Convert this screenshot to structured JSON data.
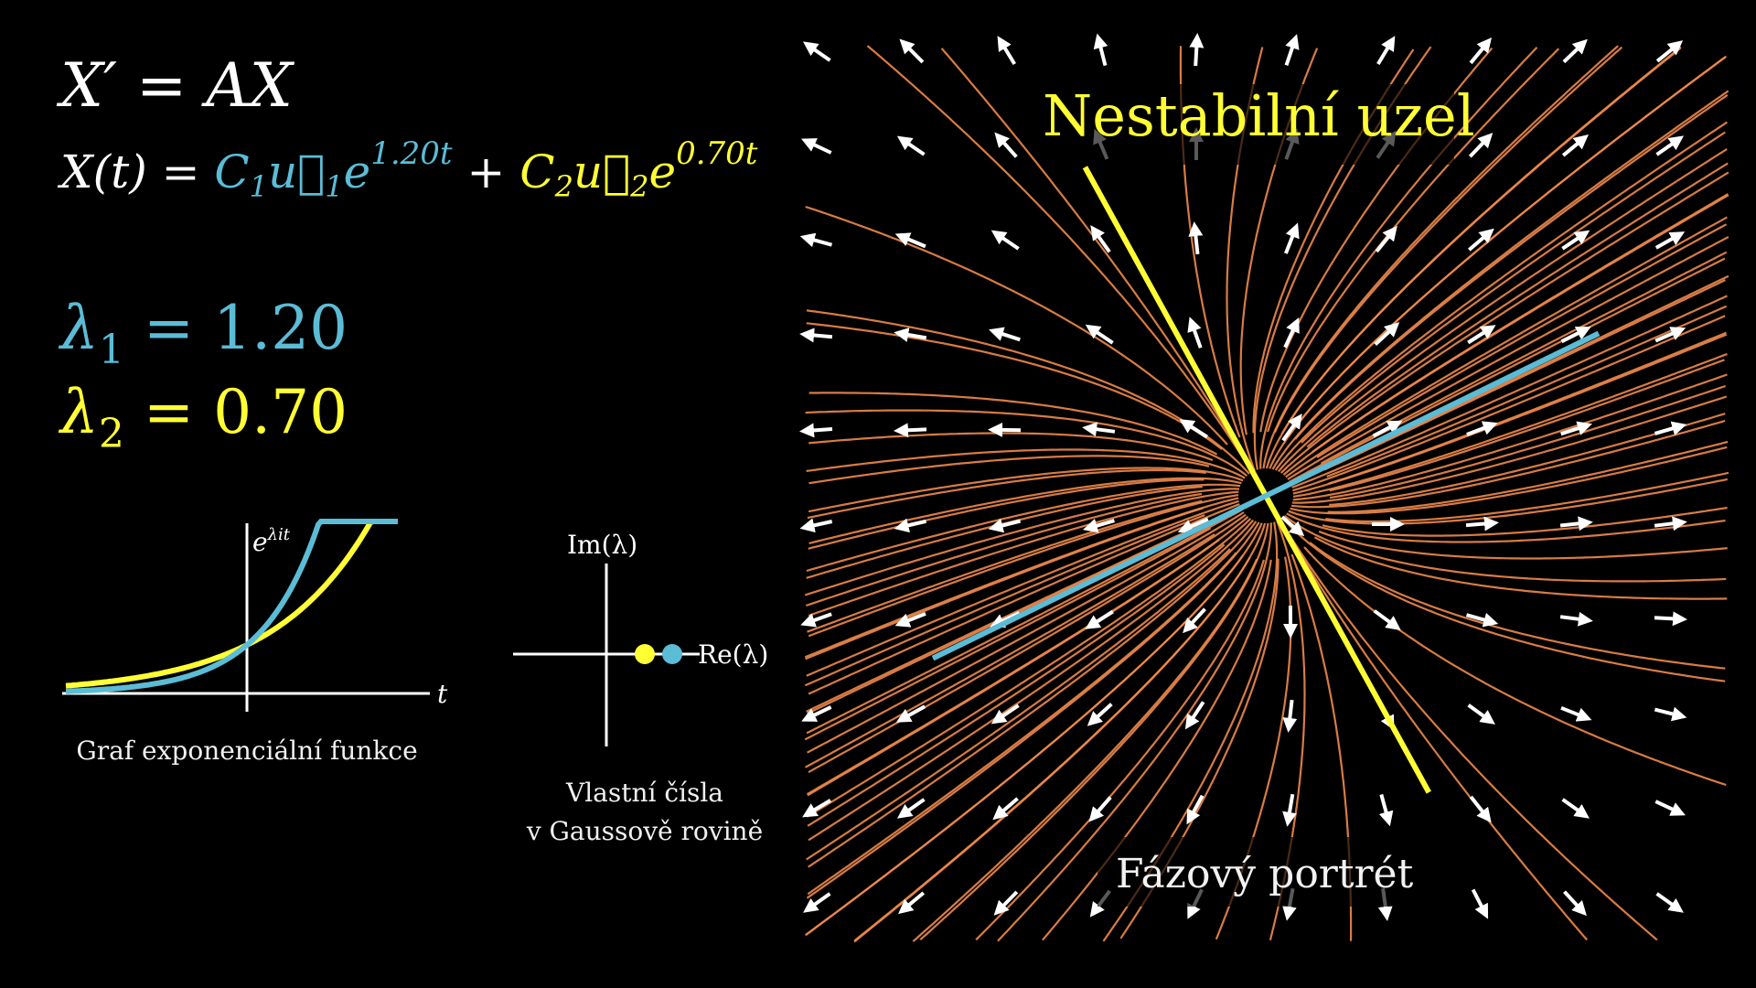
{
  "equations": {
    "system": "X′ = AX",
    "solution": {
      "lhs": "X(t) =",
      "term1": {
        "coef": "C",
        "coef_sub": "1",
        "vec": "u⃗",
        "vec_sub": "1",
        "base": "e",
        "exp": "1.20t"
      },
      "plus": "+",
      "term2": {
        "coef": "C",
        "coef_sub": "2",
        "vec": "u⃗",
        "vec_sub": "2",
        "base": "e",
        "exp": "0.70t"
      }
    }
  },
  "eigenvalues": [
    {
      "symbol": "λ",
      "sub": "1",
      "eq": "= 1.20",
      "value": 1.2,
      "color": "#5bbcd6"
    },
    {
      "symbol": "λ",
      "sub": "2",
      "eq": "= 0.70",
      "value": 0.7,
      "color": "#ffff33"
    }
  ],
  "exp_graph": {
    "caption": "Graf exponenciální funkce",
    "y_label_base": "e",
    "y_label_exp": "λit",
    "x_label": "t",
    "curves": [
      {
        "rate": 1.2,
        "color": "#5bbcd6"
      },
      {
        "rate": 0.7,
        "color": "#ffff33"
      }
    ]
  },
  "complex_plane": {
    "caption_line1": "Vlastní čísla",
    "caption_line2": "v Gaussově rovině",
    "im_label": "Im(λ)",
    "re_label": "Re(λ)",
    "points": [
      {
        "re": 0.7,
        "im": 0,
        "color": "#ffff33"
      },
      {
        "re": 1.2,
        "im": 0,
        "color": "#5bbcd6"
      }
    ]
  },
  "phase_portrait": {
    "title": "Nestabilní uzel",
    "subtitle": "Fázový portrét",
    "eigenvectors": [
      {
        "direction": [
          2.05,
          1
        ],
        "color": "#5bbcd6"
      },
      {
        "direction": [
          -0.55,
          1
        ],
        "color": "#ffff33"
      }
    ],
    "streamline_color": "#f08a4b",
    "arrow_color": "#ffffff"
  }
}
